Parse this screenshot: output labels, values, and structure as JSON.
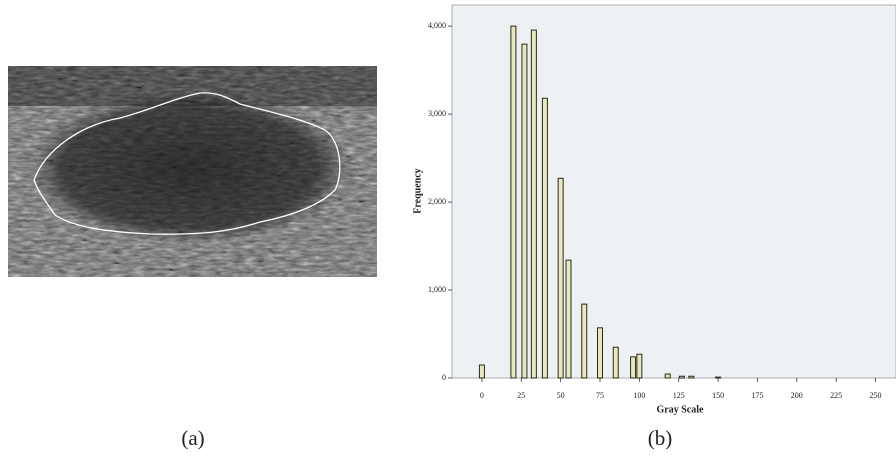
{
  "chart_data": {
    "type": "bar",
    "x_label": "Gray Scale",
    "y_label": "Frequency",
    "x": [
      0,
      20,
      27,
      33,
      40,
      50,
      55,
      65,
      75,
      85,
      96,
      100,
      118,
      127,
      133,
      150
    ],
    "values": [
      148,
      4000,
      3795,
      3955,
      3180,
      2270,
      1340,
      840,
      570,
      350,
      240,
      270,
      45,
      20,
      20,
      10
    ],
    "color": "#e6e6bf",
    "xlim": [
      -19,
      263
    ],
    "ylim": [
      0,
      4240
    ],
    "xticks": [
      0,
      25,
      50,
      75,
      100,
      125,
      150,
      175,
      200,
      225,
      250
    ],
    "yticks": [
      0,
      {
        "value": 1000,
        "label": "1,000"
      },
      {
        "value": 2000,
        "label": "2,000"
      },
      {
        "value": 3000,
        "label": "3,000"
      },
      {
        "value": 4000,
        "label": "4,000"
      }
    ]
  },
  "panel_labels": [
    "(a)",
    "(b)"
  ]
}
